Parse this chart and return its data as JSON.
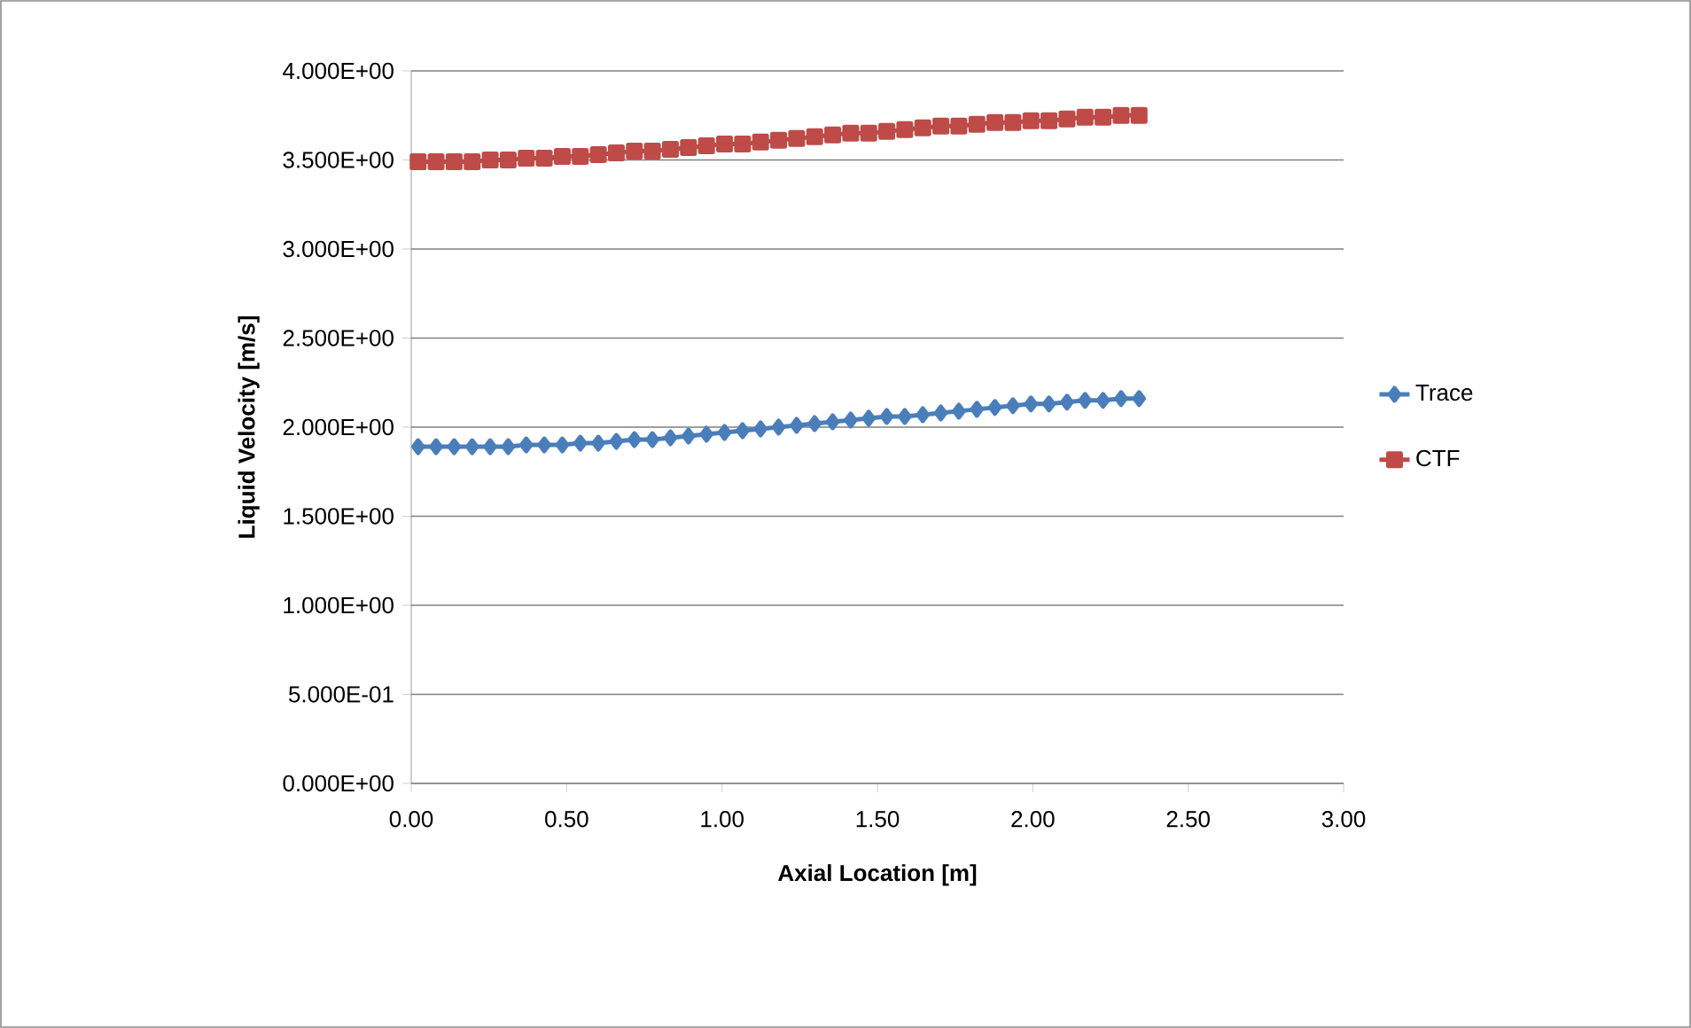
{
  "chart_data": {
    "type": "line",
    "xlabel": "Axial Location [m]",
    "ylabel": "Liquid Velocity [m/s]",
    "x": [
      0.022,
      0.08,
      0.138,
      0.196,
      0.254,
      0.312,
      0.37,
      0.428,
      0.486,
      0.544,
      0.602,
      0.66,
      0.718,
      0.776,
      0.834,
      0.892,
      0.95,
      1.008,
      1.066,
      1.124,
      1.182,
      1.24,
      1.298,
      1.356,
      1.414,
      1.472,
      1.53,
      1.588,
      1.646,
      1.704,
      1.762,
      1.82,
      1.878,
      1.936,
      1.994,
      2.052,
      2.11,
      2.168,
      2.226,
      2.284,
      2.342
    ],
    "series": [
      {
        "name": "Trace",
        "color": "#4a7ebb",
        "marker": "diamond",
        "values": [
          1.89,
          1.89,
          1.89,
          1.89,
          1.89,
          1.89,
          1.9,
          1.9,
          1.9,
          1.91,
          1.91,
          1.92,
          1.93,
          1.93,
          1.94,
          1.95,
          1.96,
          1.97,
          1.98,
          1.99,
          2.0,
          2.01,
          2.02,
          2.03,
          2.04,
          2.05,
          2.06,
          2.06,
          2.07,
          2.08,
          2.09,
          2.1,
          2.11,
          2.12,
          2.13,
          2.13,
          2.14,
          2.15,
          2.15,
          2.16,
          2.16
        ]
      },
      {
        "name": "CTF",
        "color": "#be4b48",
        "marker": "square",
        "values": [
          3.49,
          3.49,
          3.49,
          3.49,
          3.5,
          3.5,
          3.51,
          3.51,
          3.52,
          3.52,
          3.53,
          3.54,
          3.55,
          3.55,
          3.56,
          3.57,
          3.58,
          3.59,
          3.59,
          3.6,
          3.61,
          3.62,
          3.63,
          3.64,
          3.65,
          3.65,
          3.66,
          3.67,
          3.68,
          3.69,
          3.69,
          3.7,
          3.71,
          3.71,
          3.72,
          3.72,
          3.73,
          3.74,
          3.74,
          3.75,
          3.75
        ]
      }
    ],
    "xlim": [
      0,
      3
    ],
    "ylim": [
      0,
      4
    ],
    "xticks": [
      {
        "value": 0,
        "label": "0.00"
      },
      {
        "value": 0.5,
        "label": "0.50"
      },
      {
        "value": 1,
        "label": "1.00"
      },
      {
        "value": 1.5,
        "label": "1.50"
      },
      {
        "value": 2,
        "label": "2.00"
      },
      {
        "value": 2.5,
        "label": "2.50"
      },
      {
        "value": 3,
        "label": "3.00"
      }
    ],
    "yticks": [
      {
        "value": 0,
        "label": "0.000E+00"
      },
      {
        "value": 0.5,
        "label": "5.000E-01"
      },
      {
        "value": 1,
        "label": "1.000E+00"
      },
      {
        "value": 1.5,
        "label": "1.500E+00"
      },
      {
        "value": 2,
        "label": "2.000E+00"
      },
      {
        "value": 2.5,
        "label": "2.500E+00"
      },
      {
        "value": 3,
        "label": "3.000E+00"
      },
      {
        "value": 3.5,
        "label": "3.500E+00"
      },
      {
        "value": 4,
        "label": "4.000E+00"
      }
    ],
    "grid": "y",
    "legend": "right",
    "line_style": "solid"
  }
}
